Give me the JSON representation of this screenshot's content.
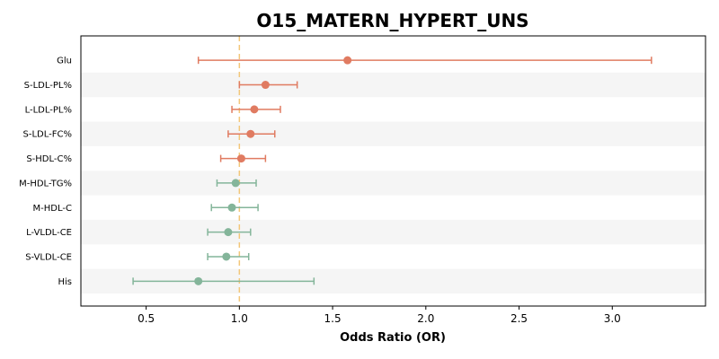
{
  "chart_data": {
    "type": "forest",
    "title": "O15_MATERN_HYPERT_UNS",
    "xlabel": "Odds Ratio (OR)",
    "ylabel": "",
    "xlim": [
      0.15,
      3.5
    ],
    "xticks": [
      0.5,
      1.0,
      1.5,
      2.0,
      2.5,
      3.0
    ],
    "xtick_labels": [
      "0.5",
      "1.0",
      "1.5",
      "2.0",
      "2.5",
      "3.0"
    ],
    "reference_line": 1.0,
    "grid": false,
    "alternating_row_shading": true,
    "colors": {
      "positive": "#E07B61",
      "negative": "#84B59A",
      "reference": "#F3C77A",
      "row_shade": "#F5F5F5"
    },
    "rows": [
      {
        "label": "Glu",
        "or": 1.58,
        "ci_low": 0.78,
        "ci_high": 3.21,
        "direction": "positive"
      },
      {
        "label": "S-LDL-PL%",
        "or": 1.14,
        "ci_low": 1.0,
        "ci_high": 1.31,
        "direction": "positive"
      },
      {
        "label": "L-LDL-PL%",
        "or": 1.08,
        "ci_low": 0.96,
        "ci_high": 1.22,
        "direction": "positive"
      },
      {
        "label": "S-LDL-FC%",
        "or": 1.06,
        "ci_low": 0.94,
        "ci_high": 1.19,
        "direction": "positive"
      },
      {
        "label": "S-HDL-C%",
        "or": 1.01,
        "ci_low": 0.9,
        "ci_high": 1.14,
        "direction": "positive"
      },
      {
        "label": "M-HDL-TG%",
        "or": 0.98,
        "ci_low": 0.88,
        "ci_high": 1.09,
        "direction": "negative"
      },
      {
        "label": "M-HDL-C",
        "or": 0.96,
        "ci_low": 0.85,
        "ci_high": 1.1,
        "direction": "negative"
      },
      {
        "label": "L-VLDL-CE",
        "or": 0.94,
        "ci_low": 0.83,
        "ci_high": 1.06,
        "direction": "negative"
      },
      {
        "label": "S-VLDL-CE",
        "or": 0.93,
        "ci_low": 0.83,
        "ci_high": 1.05,
        "direction": "negative"
      },
      {
        "label": "His",
        "or": 0.78,
        "ci_low": 0.43,
        "ci_high": 1.4,
        "direction": "negative"
      }
    ]
  }
}
